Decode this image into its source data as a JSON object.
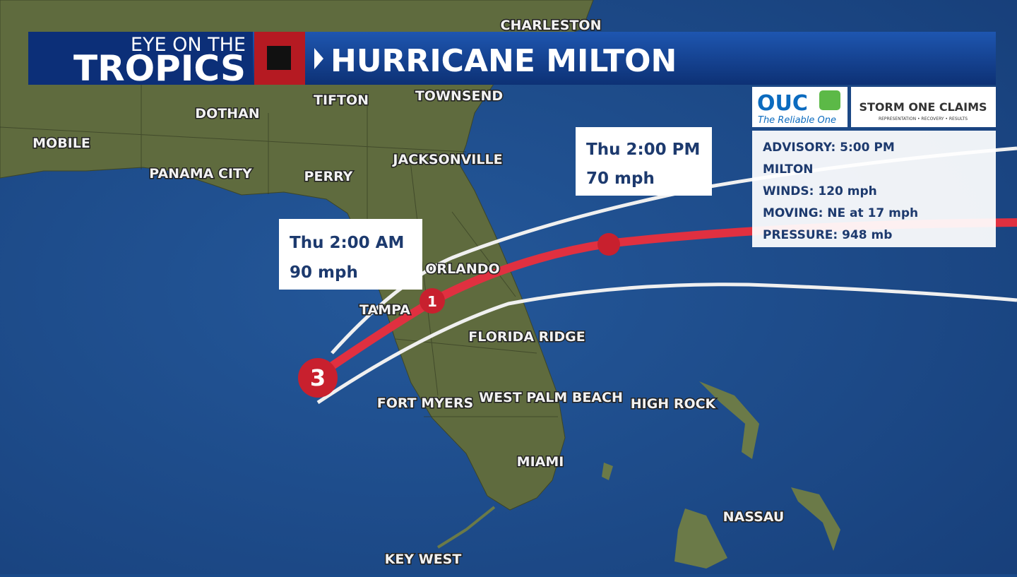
{
  "header": {
    "kicker": "EYE ON THE",
    "show": "TROPICS",
    "title": "HURRICANE MILTON"
  },
  "sponsors": {
    "ouc": "OUC",
    "ouc_tagline": "The Reliable One",
    "storm_one": "STORM ONE CLAIMS",
    "storm_one_tagline": "REPRESENTATION • RECOVERY • RESULTS"
  },
  "advisory": {
    "time": "ADVISORY: 5:00 PM",
    "name": "MILTON",
    "winds": "WINDS: 120 mph",
    "moving": "MOVING: NE at 17 mph",
    "pressure": "PRESSURE: 948 mb"
  },
  "forecast_points": [
    {
      "time": "Thu 2:00 AM",
      "wind": "90 mph"
    },
    {
      "time": "Thu 2:00 PM",
      "wind": "70 mph"
    }
  ],
  "storm_markers": [
    "3",
    "1"
  ],
  "cities": [
    "CHARLESTON",
    "TIFTON",
    "TOWNSEND",
    "DOTHAN",
    "MOBILE",
    "PANAMA CITY",
    "PERRY",
    "JACKSONVILLE",
    "ORLANDO",
    "TAMPA",
    "FLORIDA RIDGE",
    "FORT MYERS",
    "WEST PALM BEACH",
    "HIGH ROCK",
    "MIAMI",
    "NASSAU",
    "KEY WEST"
  ]
}
